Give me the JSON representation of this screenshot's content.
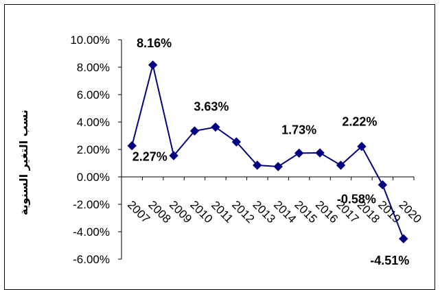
{
  "chart_data": {
    "type": "line",
    "title": "",
    "xlabel": "",
    "ylabel": "نسب التغير السنوية",
    "categories": [
      "2007",
      "2008",
      "2009",
      "2010",
      "2011",
      "2012",
      "2013",
      "2014",
      "2015",
      "2016",
      "2017",
      "2018",
      "2019",
      "2020"
    ],
    "series": [
      {
        "values": [
          2.27,
          8.16,
          1.55,
          3.35,
          3.63,
          2.55,
          0.85,
          0.75,
          1.73,
          1.75,
          0.85,
          2.22,
          -0.58,
          -4.51
        ],
        "color": "#000080"
      }
    ],
    "ylim": [
      -6,
      10
    ],
    "yticks": [
      "10.00%",
      "8.00%",
      "6.00%",
      "4.00%",
      "2.00%",
      "0.00%",
      "-2.00%",
      "-4.00%",
      "-6.00%"
    ],
    "data_labels": [
      {
        "index": 0,
        "text": "2.27%"
      },
      {
        "index": 1,
        "text": "8.16%"
      },
      {
        "index": 4,
        "text": "3.63%"
      },
      {
        "index": 8,
        "text": "1.73%"
      },
      {
        "index": 11,
        "text": "2.22%"
      },
      {
        "index": 12,
        "text": "-0.58%"
      },
      {
        "index": 13,
        "text": "-4.51%"
      }
    ],
    "grid": false,
    "legend": "none"
  }
}
